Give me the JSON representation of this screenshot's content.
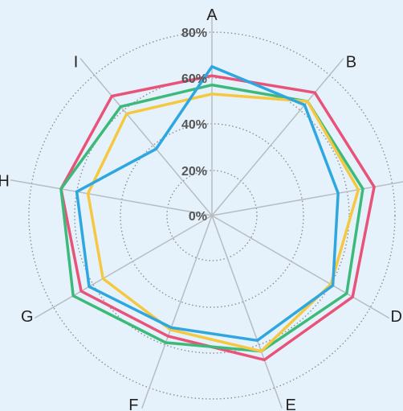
{
  "chart_data": {
    "type": "radar",
    "axes": [
      "A",
      "B",
      "C",
      "D",
      "E",
      "F",
      "G",
      "H",
      "I"
    ],
    "tick_labels": [
      "0%",
      "20%",
      "40%",
      "60%",
      "80%"
    ],
    "ticks": [
      0,
      20,
      40,
      60,
      80
    ],
    "rmax": 80,
    "series": [
      {
        "color": "#e8537a",
        "values": [
          61,
          70,
          72,
          71,
          67,
          56,
          66,
          67,
          68
        ]
      },
      {
        "color": "#3dba7a",
        "values": [
          57,
          65,
          67,
          68,
          63,
          59,
          70,
          67,
          62
        ]
      },
      {
        "color": "#f5c842",
        "values": [
          53,
          65,
          65,
          60,
          63,
          53,
          55,
          55,
          58
        ]
      },
      {
        "color": "#2ea7e0",
        "values": [
          65,
          63,
          56,
          61,
          58,
          52,
          62,
          60,
          38
        ]
      }
    ],
    "grid": "dotted",
    "legend": "none"
  }
}
